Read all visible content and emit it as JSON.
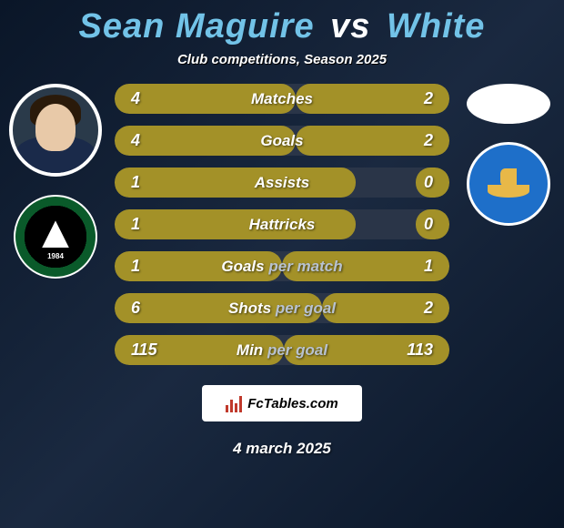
{
  "colors": {
    "bg_grad_1": "#0a1628",
    "bg_grad_2": "#1a2940",
    "player_name_color": "#72c3e8",
    "bar_track": "#2a3548",
    "bar_left": "#a39128",
    "bar_right": "#a39128",
    "text": "#ffffff",
    "label_sub": "#b8c2d0"
  },
  "title": {
    "player1": "Sean Maguire",
    "vs": "vs",
    "player2": "White"
  },
  "subtitle": "Club competitions, Season 2025",
  "rows": [
    {
      "label_main": "Matches",
      "label_sub": "",
      "left": "4",
      "right": "2",
      "left_w": 54,
      "right_w": 46
    },
    {
      "label_main": "Goals",
      "label_sub": "",
      "left": "4",
      "right": "2",
      "left_w": 54,
      "right_w": 46
    },
    {
      "label_main": "Assists",
      "label_sub": "",
      "left": "1",
      "right": "0",
      "left_w": 72,
      "right_w": 10
    },
    {
      "label_main": "Hattricks",
      "label_sub": "",
      "left": "1",
      "right": "0",
      "left_w": 72,
      "right_w": 10
    },
    {
      "label_main": "Goals",
      "label_sub": "per match",
      "left": "1",
      "right": "1",
      "left_w": 50,
      "right_w": 50
    },
    {
      "label_main": "Shots",
      "label_sub": "per goal",
      "left": "6",
      "right": "2",
      "left_w": 62,
      "right_w": 38
    },
    {
      "label_main": "Min",
      "label_sub": "per goal",
      "left": "115",
      "right": "113",
      "left_w": 50.5,
      "right_w": 49.5
    }
  ],
  "player1_club": "CORK CITY",
  "player1_club_year": "1984",
  "player2_club": "WATERFORD UNITED FOOTBALL CLUB",
  "logo_text": "FcTables.com",
  "date": "4 march 2025"
}
